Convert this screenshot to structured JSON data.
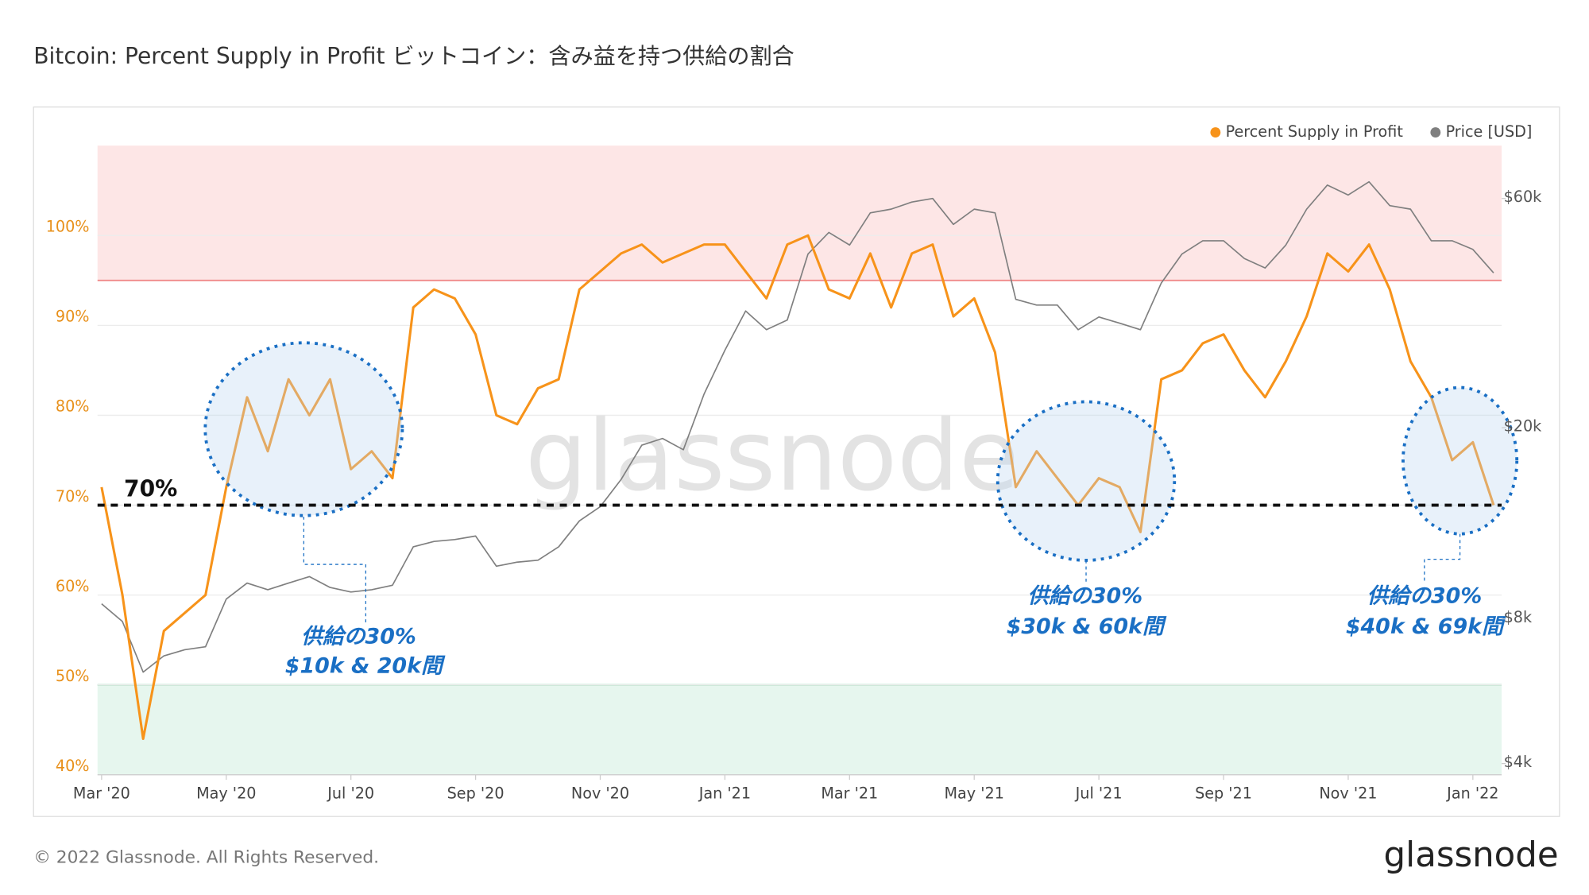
{
  "chart_data": {
    "type": "line",
    "title": "Bitcoin: Percent Supply in Profit  ビットコイン：含み益を持つ供給の割合",
    "categories": [
      "Mar '20",
      null,
      null,
      null,
      null,
      null,
      "May '20",
      null,
      null,
      null,
      null,
      null,
      "Jul '20",
      null,
      null,
      null,
      null,
      null,
      "Sep '20",
      null,
      null,
      null,
      null,
      null,
      "Nov '20",
      null,
      null,
      null,
      null,
      null,
      "Jan '21",
      null,
      null,
      null,
      null,
      null,
      "Mar '21",
      null,
      null,
      null,
      null,
      null,
      "May '21",
      null,
      null,
      null,
      null,
      null,
      "Jul '21",
      null,
      null,
      null,
      null,
      null,
      "Sep '21",
      null,
      null,
      null,
      null,
      null,
      "Nov '21",
      null,
      null,
      null,
      null,
      null,
      "Jan '22",
      null
    ],
    "series": [
      {
        "name": "Percent Supply in Profit",
        "color": "#f7931a",
        "values": [
          72,
          60,
          44,
          56,
          58,
          60,
          72,
          82,
          76,
          84,
          80,
          84,
          74,
          76,
          73,
          92,
          94,
          93,
          89,
          80,
          79,
          83,
          84,
          94,
          96,
          98,
          99,
          97,
          98,
          99,
          99,
          96,
          93,
          99,
          100,
          94,
          93,
          98,
          92,
          98,
          99,
          91,
          93,
          87,
          72,
          76,
          73,
          70,
          73,
          72,
          67,
          84,
          85,
          88,
          89,
          85,
          82,
          86,
          91,
          98,
          96,
          99,
          94,
          86,
          82,
          75,
          77,
          70
        ]
      },
      {
        "name": "Price [USD]",
        "color": "#7f7f7f",
        "axis": "y2",
        "values": [
          8600,
          7900,
          6200,
          6700,
          6900,
          7000,
          8800,
          9500,
          9200,
          9500,
          9800,
          9300,
          9100,
          9200,
          9400,
          11300,
          11600,
          11700,
          11900,
          10300,
          10500,
          10600,
          11300,
          12800,
          13700,
          15600,
          18400,
          19000,
          18000,
          23500,
          29000,
          35000,
          32000,
          33500,
          46000,
          51000,
          48000,
          56000,
          57000,
          59000,
          60000,
          53000,
          57000,
          56000,
          37000,
          36000,
          36000,
          32000,
          34000,
          33000,
          32000,
          40000,
          46000,
          49000,
          49000,
          45000,
          43000,
          48000,
          57000,
          64000,
          61000,
          65000,
          58000,
          57000,
          49000,
          49000,
          47000,
          42000
        ]
      }
    ],
    "ylim": [
      40,
      110
    ],
    "yticks": [
      {
        "value": 40,
        "label": "40%"
      },
      {
        "value": 50,
        "label": "50%"
      },
      {
        "value": 60,
        "label": "60%"
      },
      {
        "value": 70,
        "label": "70%"
      },
      {
        "value": 80,
        "label": "80%"
      },
      {
        "value": 90,
        "label": "90%"
      },
      {
        "value": 100,
        "label": "100%"
      }
    ],
    "y2lim": [
      3790,
      77300
    ],
    "y2scale": "log",
    "y2ticks": [
      {
        "value": 4000,
        "label": "$4k"
      },
      {
        "value": 8000,
        "label": "$8k"
      },
      {
        "value": 20000,
        "label": "$20k"
      },
      {
        "value": 60000,
        "label": "$60k"
      }
    ],
    "grid": true,
    "legend": "top-right",
    "upper_band_from": 95,
    "lower_band_to": 50,
    "threshold": 70,
    "annotations": [
      "70%",
      "供給の30%",
      "$10k & 20k間",
      "供給の30%",
      "$30k & 60k間",
      "供給の30%",
      "$40k & 69k間"
    ],
    "watermark": "glassnode",
    "footer": "© 2022 Glassnode. All Rights Reserved.",
    "logo": "glassnode"
  }
}
